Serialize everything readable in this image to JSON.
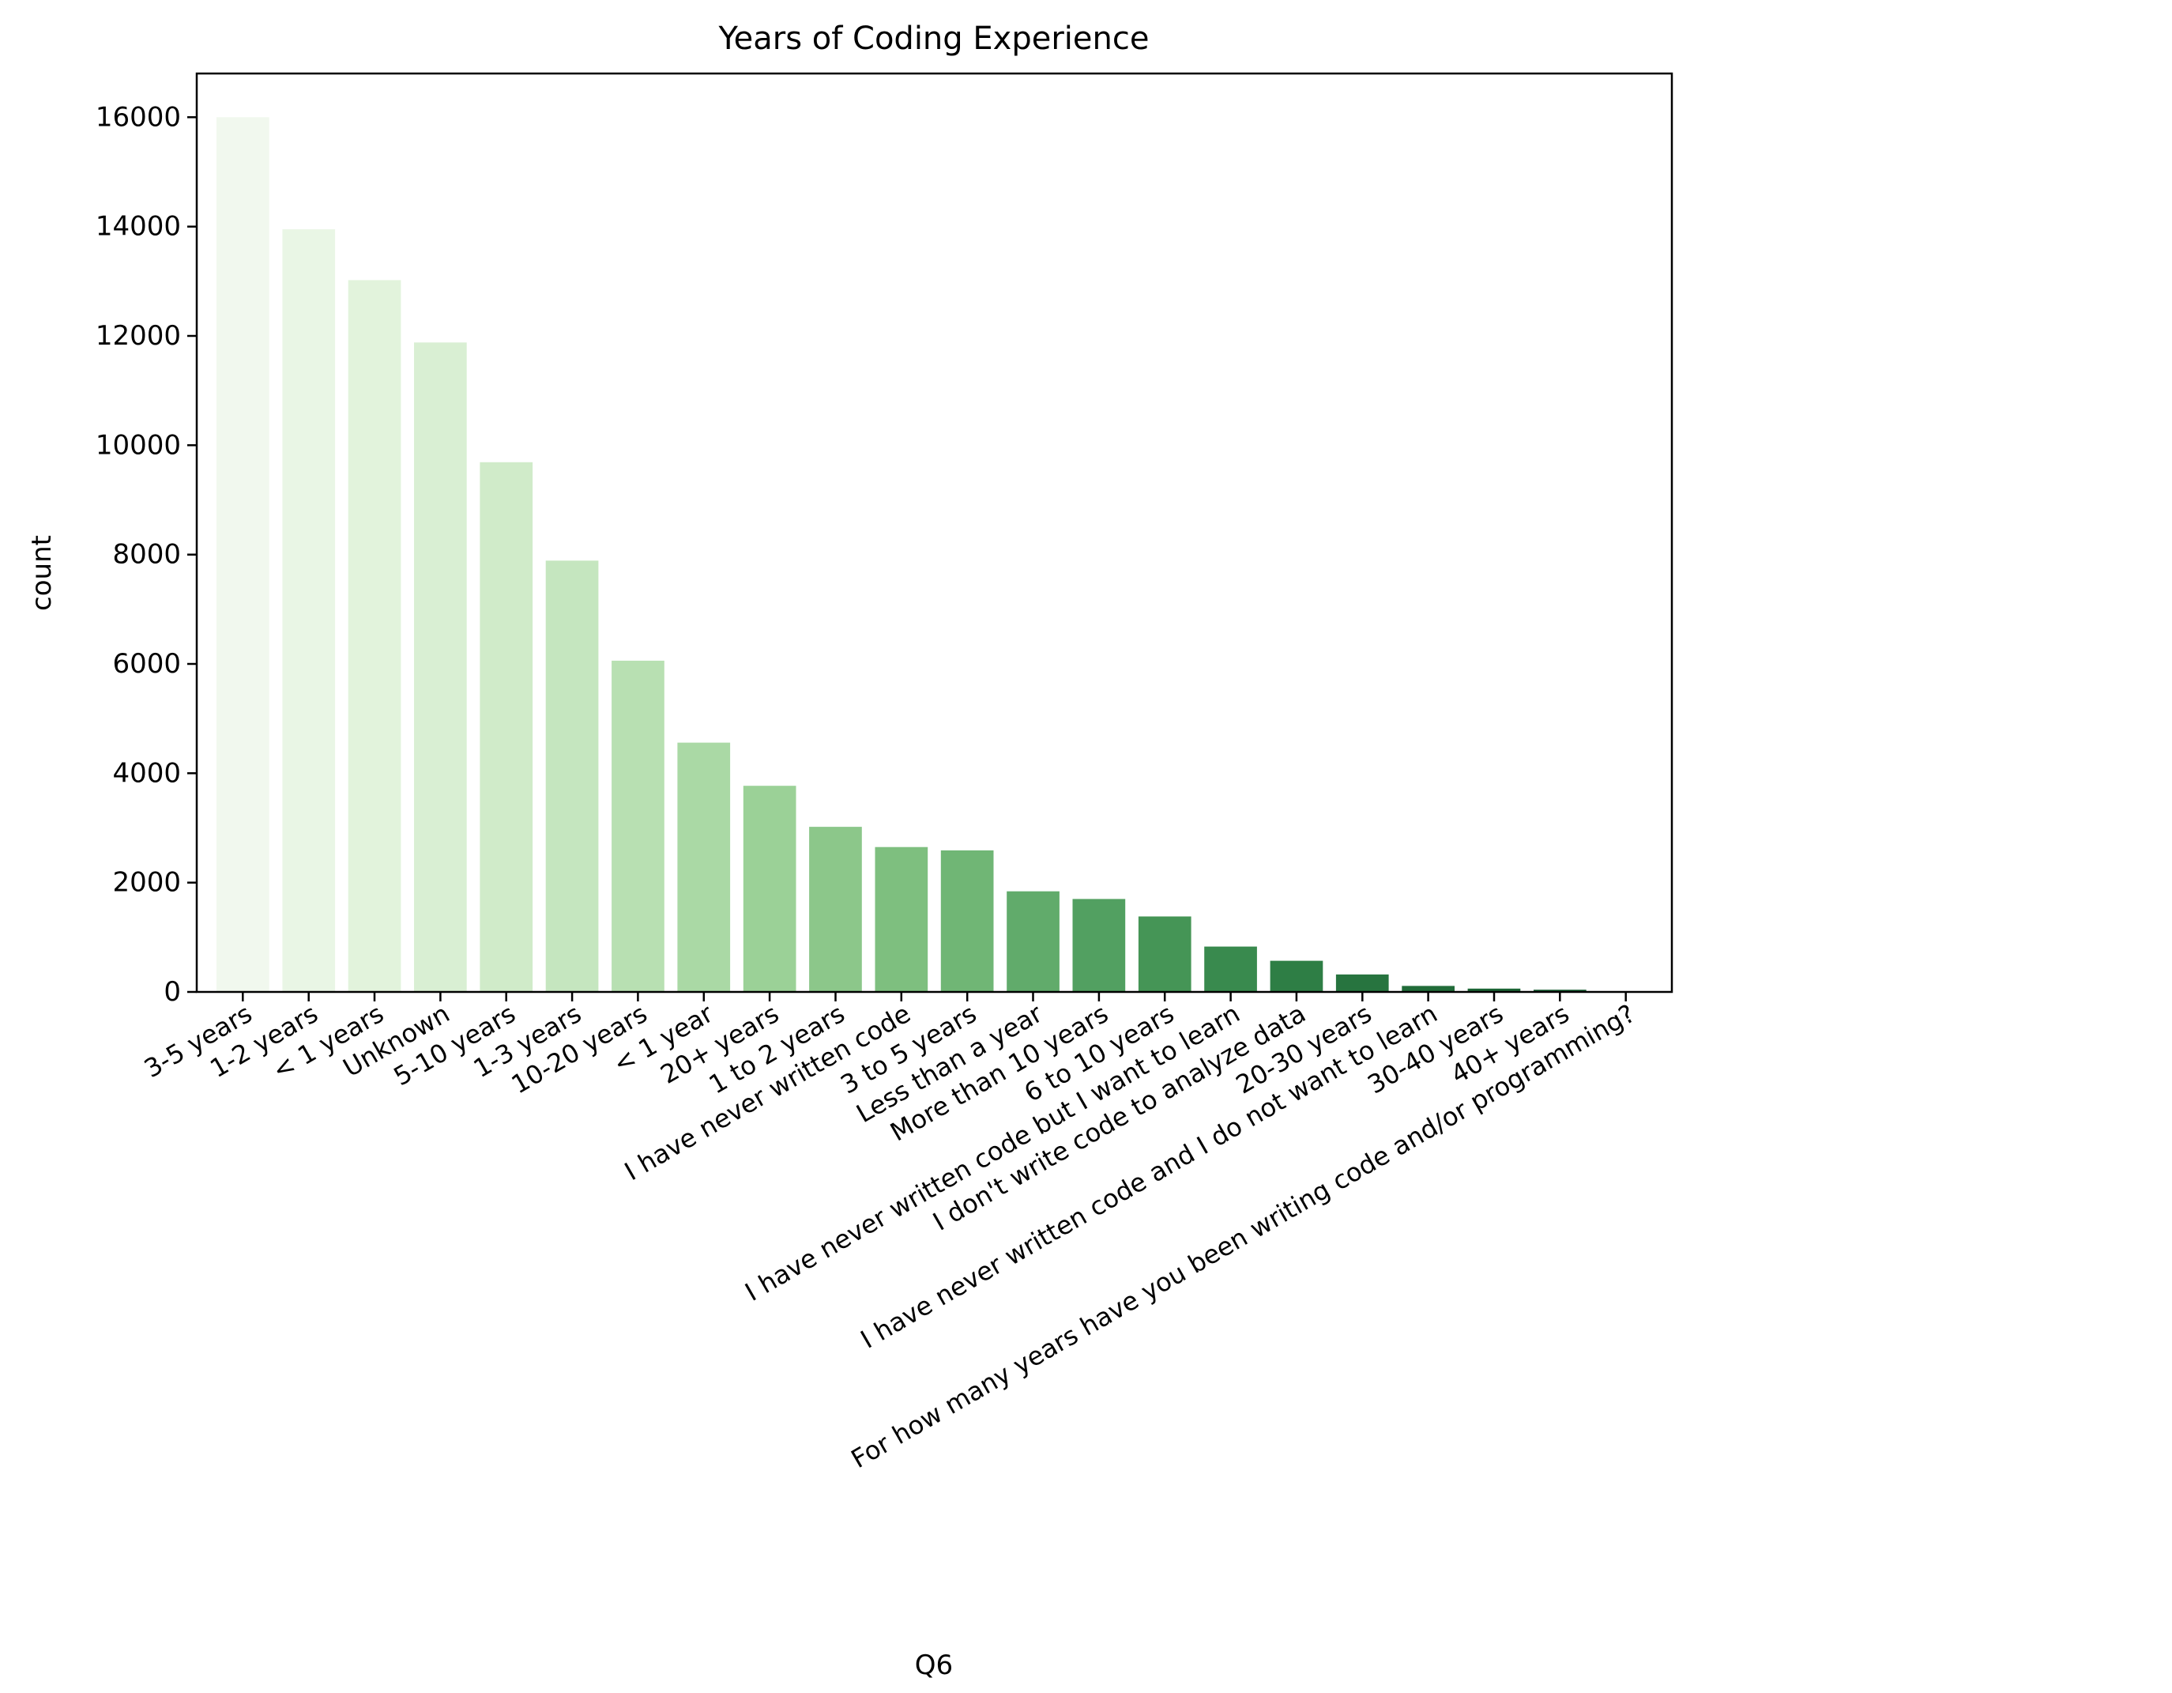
{
  "chart_data": {
    "type": "bar",
    "title": "Years of Coding Experience",
    "xlabel": "Q6",
    "ylabel": "count",
    "ylim": [
      0,
      16800
    ],
    "yticks": [
      0,
      2000,
      4000,
      6000,
      8000,
      10000,
      12000,
      14000,
      16000
    ],
    "grid": false,
    "legend": "none",
    "categories": [
      "3-5 years",
      "1-2 years",
      "< 1 years",
      "Unknown",
      "5-10 years",
      "1-3 years",
      "10-20 years",
      "< 1 year",
      "20+ years",
      "1 to 2 years",
      "I have never written code",
      "3 to 5 years",
      "Less than a year",
      "More than 10 years",
      "6 to 10 years",
      "I have never written code but I want to learn",
      "I don't write code to analyze data",
      "20-30 years",
      "I have never written code and I do not want to learn",
      "30-40 years",
      "40+ years",
      "For how many years have you been writing code and/or programming?"
    ],
    "values": [
      16000,
      13950,
      13020,
      11880,
      9690,
      7890,
      6060,
      4560,
      3770,
      3020,
      2650,
      2590,
      1840,
      1700,
      1380,
      830,
      570,
      320,
      110,
      60,
      40,
      0
    ],
    "colors": [
      "#f1f8ee",
      "#e9f6e5",
      "#e2f3dc",
      "#d9efd3",
      "#d0ebc9",
      "#c5e6bf",
      "#b8e0b2",
      "#aad9a5",
      "#9bd197",
      "#8cc78a",
      "#7ebf7f",
      "#70b675",
      "#61ab6b",
      "#52a061",
      "#459556",
      "#398a4e",
      "#2e7e45",
      "#27743f",
      "#216c39",
      "#1b6434",
      "#165c30",
      "#0f522b"
    ]
  }
}
